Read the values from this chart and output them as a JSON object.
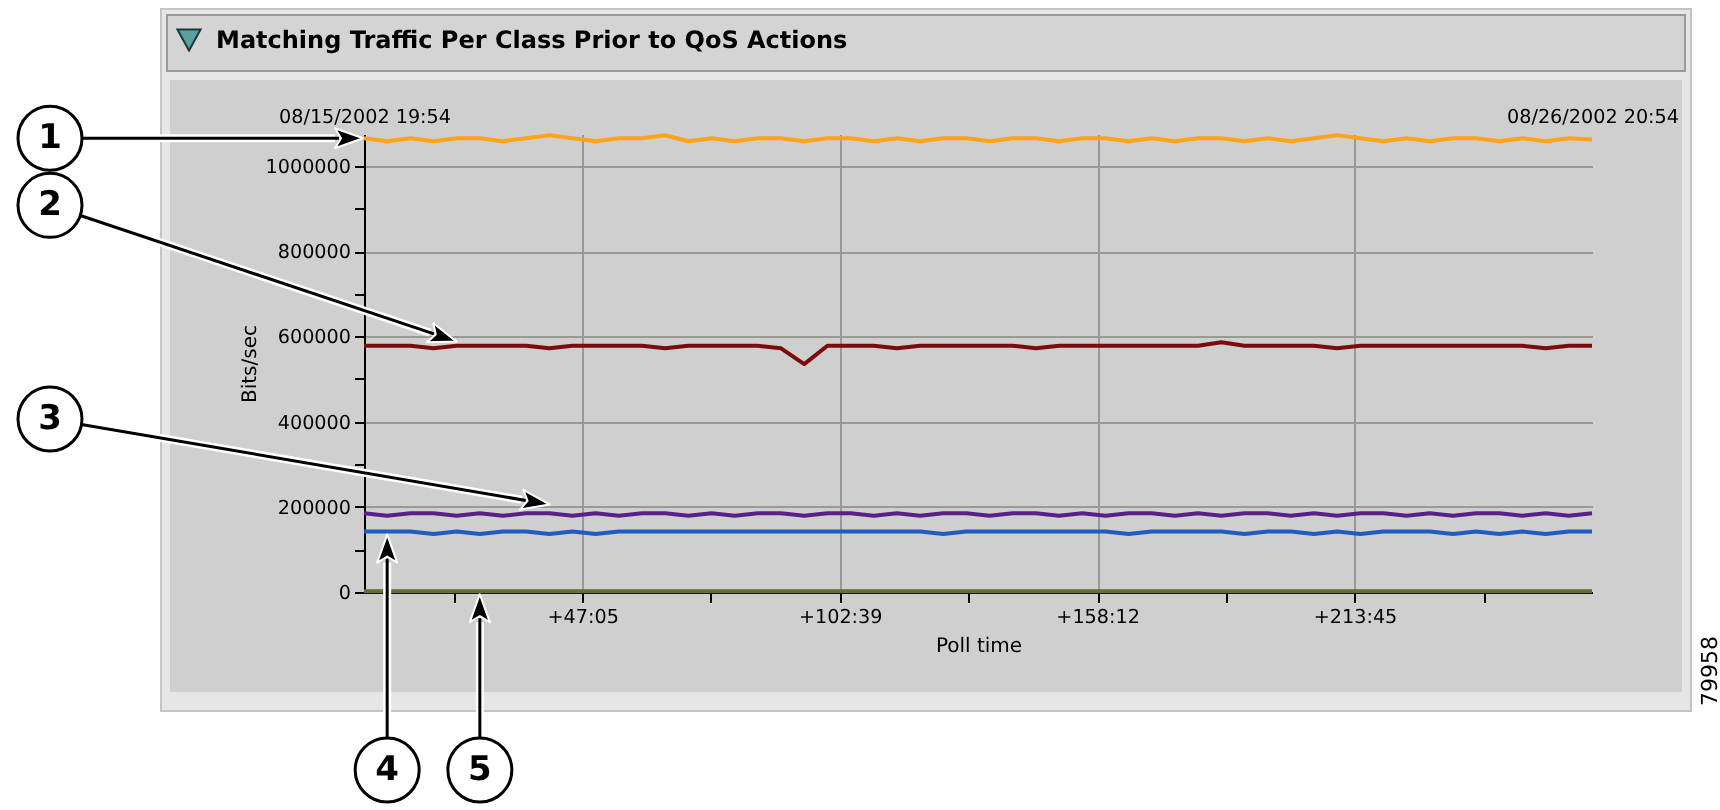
{
  "chart_data": {
    "type": "line",
    "title": "Matching Traffic Per Class Prior to QoS Actions",
    "xlabel": "Poll time",
    "ylabel": "Bits/sec",
    "x": [
      "2002-08-15T19:54",
      "2002-08-16T00:54",
      "2002-08-16T05:54",
      "2002-08-16T10:54",
      "2002-08-16T15:54",
      "2002-08-16T20:54",
      "2002-08-17T01:54",
      "2002-08-17T06:54",
      "2002-08-17T11:54",
      "2002-08-17T16:54",
      "2002-08-17T21:54",
      "2002-08-18T02:54",
      "2002-08-18T07:54",
      "2002-08-18T12:54",
      "2002-08-18T17:54",
      "2002-08-18T22:54",
      "2002-08-19T03:54",
      "2002-08-19T08:54",
      "2002-08-19T13:54",
      "2002-08-19T18:54",
      "2002-08-19T23:54",
      "2002-08-20T04:54",
      "2002-08-20T09:54",
      "2002-08-20T14:54",
      "2002-08-20T19:54",
      "2002-08-21T00:54",
      "2002-08-21T05:54",
      "2002-08-21T10:54",
      "2002-08-21T15:54",
      "2002-08-21T20:54",
      "2002-08-22T01:54",
      "2002-08-22T06:54",
      "2002-08-22T11:54",
      "2002-08-22T16:54",
      "2002-08-22T21:54",
      "2002-08-23T02:54",
      "2002-08-23T07:54",
      "2002-08-23T12:54",
      "2002-08-23T17:54",
      "2002-08-23T22:54",
      "2002-08-24T03:54",
      "2002-08-24T08:54",
      "2002-08-24T13:54",
      "2002-08-24T18:54",
      "2002-08-24T23:54",
      "2002-08-25T04:54",
      "2002-08-25T09:54",
      "2002-08-25T14:54",
      "2002-08-25T19:54",
      "2002-08-26T00:54",
      "2002-08-26T05:54",
      "2002-08-26T10:54",
      "2002-08-26T15:54",
      "2002-08-26T20:54"
    ],
    "series": [
      {
        "color": "#ffa31a",
        "values": [
          1065000,
          1058000,
          1065000,
          1058000,
          1065000,
          1065000,
          1058000,
          1065000,
          1072000,
          1065000,
          1058000,
          1065000,
          1065000,
          1072000,
          1058000,
          1065000,
          1058000,
          1065000,
          1065000,
          1058000,
          1065000,
          1065000,
          1058000,
          1065000,
          1058000,
          1065000,
          1065000,
          1058000,
          1065000,
          1065000,
          1058000,
          1065000,
          1065000,
          1058000,
          1065000,
          1058000,
          1065000,
          1065000,
          1058000,
          1065000,
          1058000,
          1065000,
          1072000,
          1065000,
          1058000,
          1065000,
          1058000,
          1065000,
          1065000,
          1058000,
          1065000,
          1058000,
          1065000,
          1062000
        ]
      },
      {
        "color": "#7b0c0c",
        "values": [
          578000,
          578000,
          578000,
          572000,
          578000,
          578000,
          578000,
          578000,
          572000,
          578000,
          578000,
          578000,
          578000,
          572000,
          578000,
          578000,
          578000,
          578000,
          572000,
          535000,
          578000,
          578000,
          578000,
          572000,
          578000,
          578000,
          578000,
          578000,
          578000,
          572000,
          578000,
          578000,
          578000,
          578000,
          578000,
          578000,
          578000,
          586000,
          578000,
          578000,
          578000,
          578000,
          572000,
          578000,
          578000,
          578000,
          578000,
          578000,
          578000,
          578000,
          578000,
          572000,
          578000,
          578000
        ]
      },
      {
        "color": "#5b1f8a",
        "values": [
          185000,
          179000,
          185000,
          185000,
          179000,
          185000,
          179000,
          185000,
          185000,
          179000,
          185000,
          179000,
          185000,
          185000,
          179000,
          185000,
          179000,
          185000,
          185000,
          179000,
          185000,
          185000,
          179000,
          185000,
          179000,
          185000,
          185000,
          179000,
          185000,
          185000,
          179000,
          185000,
          179000,
          185000,
          185000,
          179000,
          185000,
          179000,
          185000,
          185000,
          179000,
          185000,
          179000,
          185000,
          185000,
          179000,
          185000,
          179000,
          185000,
          185000,
          179000,
          185000,
          179000,
          185000
        ]
      },
      {
        "color": "#1f5cbf",
        "values": [
          142000,
          142000,
          142000,
          136000,
          142000,
          136000,
          142000,
          142000,
          136000,
          142000,
          136000,
          142000,
          142000,
          142000,
          142000,
          142000,
          142000,
          142000,
          142000,
          142000,
          142000,
          142000,
          142000,
          142000,
          142000,
          136000,
          142000,
          142000,
          142000,
          142000,
          142000,
          142000,
          142000,
          136000,
          142000,
          142000,
          142000,
          142000,
          136000,
          142000,
          142000,
          136000,
          142000,
          136000,
          142000,
          142000,
          142000,
          136000,
          142000,
          136000,
          142000,
          136000,
          142000,
          142000
        ]
      },
      {
        "color": "#6a6a3c",
        "values": [
          2000,
          2000,
          2000,
          2000,
          2000,
          2000,
          2000,
          2000,
          2000,
          2000,
          2000,
          2000,
          2000,
          2000,
          2000,
          2000,
          2000,
          2000,
          2000,
          2000,
          2000,
          2000,
          2000,
          2000,
          2000,
          2000,
          2000,
          2000,
          2000,
          2000,
          2000,
          2000,
          2000,
          2000,
          2000,
          2000,
          2000,
          2000,
          2000,
          2000,
          2000,
          2000,
          2000,
          2000,
          2000,
          2000,
          2000,
          2000,
          2000,
          2000,
          2000,
          2000,
          2000,
          2000
        ]
      }
    ],
    "xlim": [
      "2002-08-15T19:54",
      "2002-08-26T20:54"
    ],
    "xticks": [
      {
        "value": "2002-08-16T15:12",
        "label": null
      },
      {
        "value": "2002-08-17T18:59",
        "label": "+47:05"
      },
      {
        "value": "2002-08-18T22:46",
        "label": null
      },
      {
        "value": "2002-08-20T02:33",
        "label": "+102:39"
      },
      {
        "value": "2002-08-21T06:20",
        "label": null
      },
      {
        "value": "2002-08-22T10:06",
        "label": "+158:12"
      },
      {
        "value": "2002-08-23T13:53",
        "label": null
      },
      {
        "value": "2002-08-24T17:39",
        "label": "+213:45"
      },
      {
        "value": "2002-08-25T21:26",
        "label": null
      }
    ],
    "x2lim": [
      "2002-08-15T19:54",
      "2002-08-26T20:54"
    ],
    "x2ticks": [
      {
        "value": "2002-08-15T19:54",
        "label": "08/15/2002 19:54"
      },
      {
        "value": "2002-08-26T20:54",
        "label": "08/26/2002 20:54"
      }
    ],
    "ylim": [
      0,
      1075000
    ],
    "yticks": [
      0,
      {
        "value": 100000,
        "label": null
      },
      200000,
      {
        "value": 300000,
        "label": null
      },
      400000,
      {
        "value": 500000,
        "label": null
      },
      600000,
      {
        "value": 700000,
        "label": null
      },
      800000,
      {
        "value": 900000,
        "label": null
      },
      1000000
    ],
    "grid": true,
    "annotations": [
      "1",
      "2",
      "3",
      "4",
      "5",
      "79958"
    ]
  }
}
